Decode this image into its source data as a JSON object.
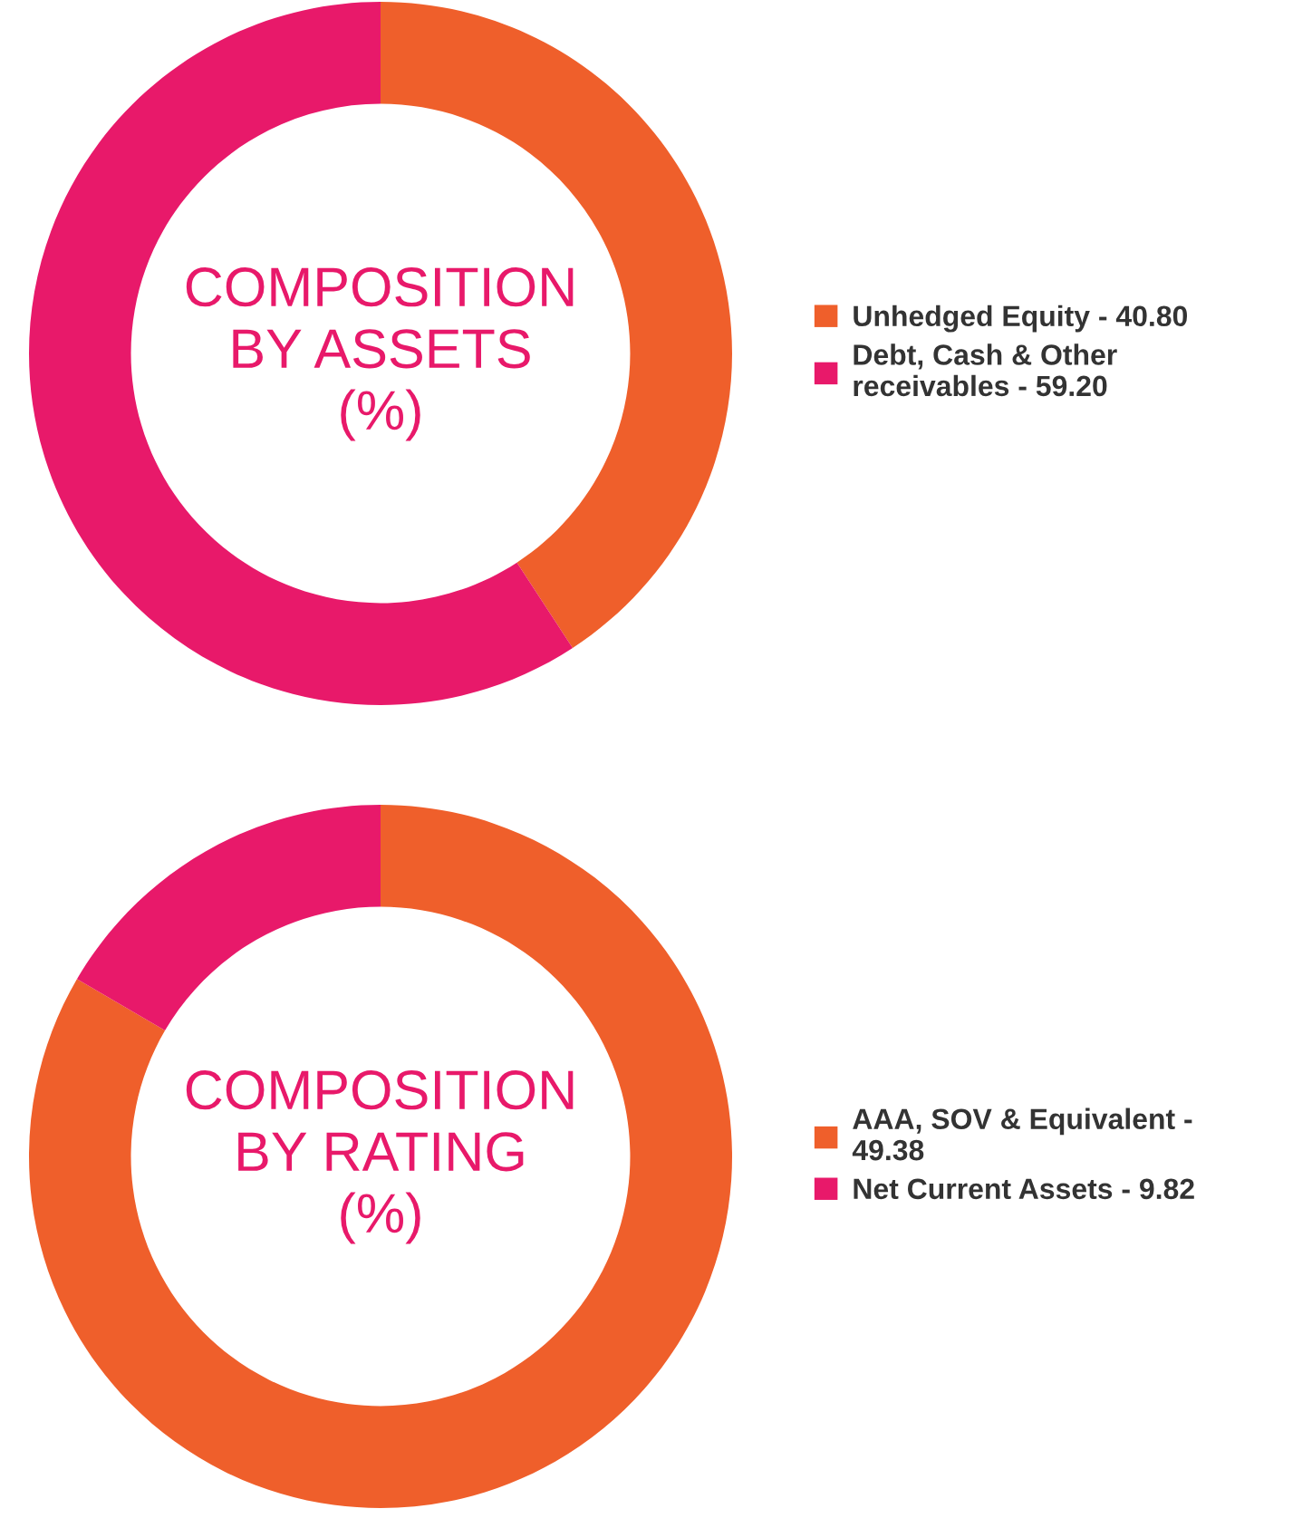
{
  "chart_data": [
    {
      "type": "donut",
      "title": "COMPOSITION\nBY ASSETS\n(%)",
      "categories": [
        "Unhedged Equity -",
        "Debt, Cash & Other receivables -"
      ],
      "values": [
        40.8,
        59.2
      ],
      "value_labels": [
        "40.80",
        "59.20"
      ],
      "colors": [
        "#ef5f2b",
        "#e8196a"
      ],
      "legend": "right"
    },
    {
      "type": "donut",
      "title": "COMPOSITION\nBY RATING\n(%)",
      "categories": [
        "AAA, SOV & Equivalent -",
        "Net Current Assets -"
      ],
      "values": [
        49.38,
        9.82
      ],
      "value_labels": [
        "49.38",
        "9.82"
      ],
      "colors": [
        "#ef5f2b",
        "#e8196a"
      ],
      "legend": "right"
    }
  ]
}
